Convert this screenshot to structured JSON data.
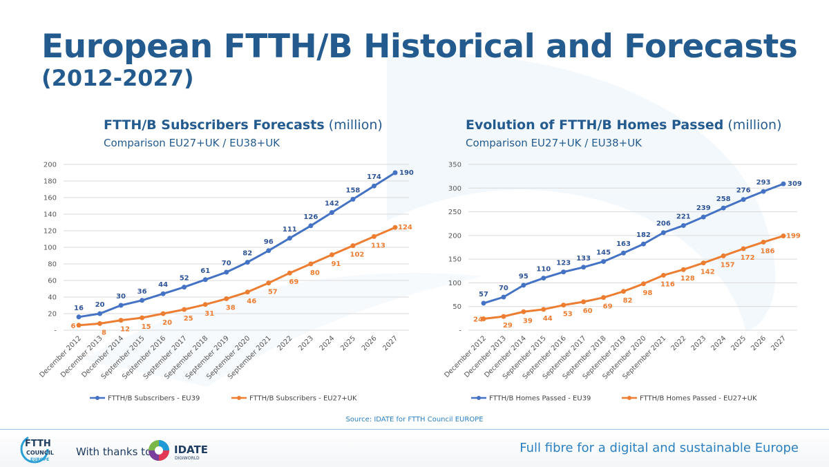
{
  "page": {
    "title": "European FTTH/B Historical and Forecasts",
    "subtitle": "(2012-2027)",
    "source": "Source: IDATE for FTTH Council EUROPE",
    "thanks": "With thanks to",
    "tagline": "Full fibre for a digital and sustainable Europe",
    "logo_ftth": {
      "line1": "FTTH",
      "line2": "COUNCIL",
      "line3": "EUROPE"
    },
    "logo_idate": {
      "name": "IDATE",
      "sub": "DIGIWORLD"
    }
  },
  "colors": {
    "blue": "#4472c4",
    "blue_dark": "#2f5597",
    "orange": "#ed7d31",
    "title": "#245b8f",
    "accent": "#2a7fc1"
  },
  "chart_data": [
    {
      "type": "line",
      "title_bold": "FTTH/B Subscribers Forecasts",
      "title_rest": " (million)",
      "subtitle": "Comparison EU27+UK / EU38+UK",
      "categories": [
        "December 2012",
        "December 2013",
        "December 2014",
        "September 2015",
        "September 2016",
        "September 2017",
        "September 2018",
        "September 2019",
        "September 2020",
        "September 2021",
        "2022",
        "2023",
        "2024",
        "2025",
        "2026",
        "2027"
      ],
      "yticks": [
        "-",
        "20",
        "40",
        "60",
        "80",
        "100",
        "120",
        "140",
        "160",
        "180",
        "200"
      ],
      "ylim": [
        0,
        200
      ],
      "series": [
        {
          "name": "FTTH/B Subscribers - EU39",
          "color": "#4472c4",
          "values": [
            16,
            20,
            30,
            36,
            44,
            52,
            61,
            70,
            82,
            96,
            111,
            126,
            142,
            158,
            174,
            190
          ]
        },
        {
          "name": "FTTH/B Subscribers - EU27+UK",
          "color": "#ed7d31",
          "values": [
            6,
            8,
            12,
            15,
            20,
            25,
            31,
            38,
            46,
            57,
            69,
            80,
            91,
            102,
            113,
            124
          ]
        }
      ]
    },
    {
      "type": "line",
      "title_bold": "Evolution of FTTH/B Homes Passed",
      "title_rest": " (million)",
      "subtitle": "Comparison EU27+UK / EU38+UK",
      "categories": [
        "December 2012",
        "December 2013",
        "December 2014",
        "September 2015",
        "September 2016",
        "September 2017",
        "September 2018",
        "September 2019",
        "September 2020",
        "September 2021",
        "2022",
        "2023",
        "2024",
        "2025",
        "2026",
        "2027"
      ],
      "yticks": [
        "-",
        "50",
        "100",
        "150",
        "200",
        "250",
        "300",
        "350"
      ],
      "ylim": [
        0,
        350
      ],
      "series": [
        {
          "name": "FTTH/B Homes Passed - EU39",
          "color": "#4472c4",
          "values": [
            57,
            70,
            95,
            110,
            123,
            133,
            145,
            163,
            182,
            206,
            221,
            239,
            258,
            276,
            293,
            309
          ]
        },
        {
          "name": "FTTH/B Homes Passed - EU27+UK",
          "color": "#ed7d31",
          "values": [
            24,
            29,
            39,
            44,
            53,
            60,
            69,
            82,
            98,
            116,
            128,
            142,
            157,
            172,
            186,
            199
          ]
        }
      ]
    }
  ]
}
